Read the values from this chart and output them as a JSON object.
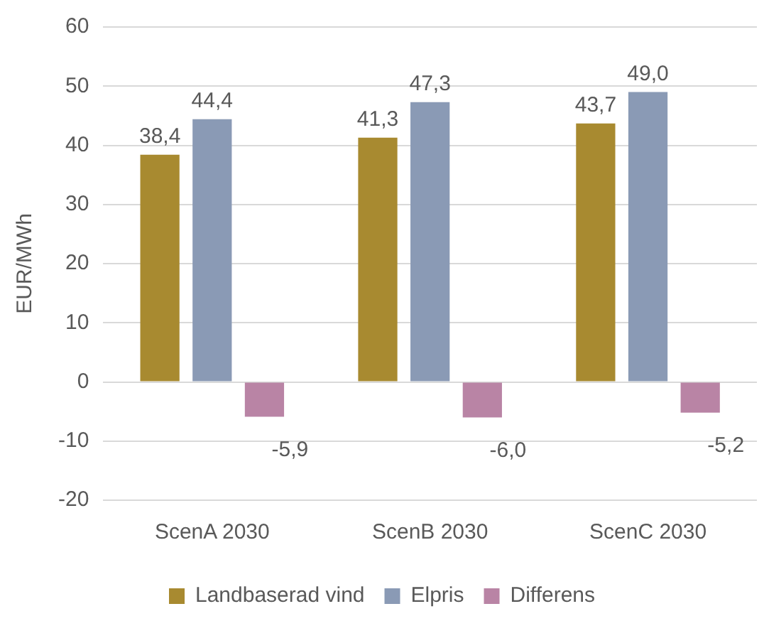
{
  "chart_data": {
    "type": "bar",
    "ylabel": "EUR/MWh",
    "categories": [
      "ScenA 2030",
      "ScenB 2030",
      "ScenC 2030"
    ],
    "series": [
      {
        "name": "Landbaserad vind",
        "color": "#a88a30",
        "values": [
          38.4,
          41.3,
          43.7
        ],
        "value_labels": [
          "38,4",
          "41,3",
          "43,7"
        ]
      },
      {
        "name": "Elpris",
        "color": "#8a9ab5",
        "values": [
          44.4,
          47.3,
          49.0
        ],
        "value_labels": [
          "44,4",
          "47,3",
          "49,0"
        ]
      },
      {
        "name": "Differens",
        "color": "#b984a5",
        "values": [
          -5.9,
          -6.0,
          -5.2
        ],
        "value_labels": [
          "-5,9",
          "-6,0",
          "-5,2"
        ]
      }
    ],
    "ylim": [
      -20,
      60
    ],
    "yticks": [
      -20,
      -10,
      0,
      10,
      20,
      30,
      40,
      50,
      60
    ],
    "grid": "y",
    "legend": "bottom"
  }
}
